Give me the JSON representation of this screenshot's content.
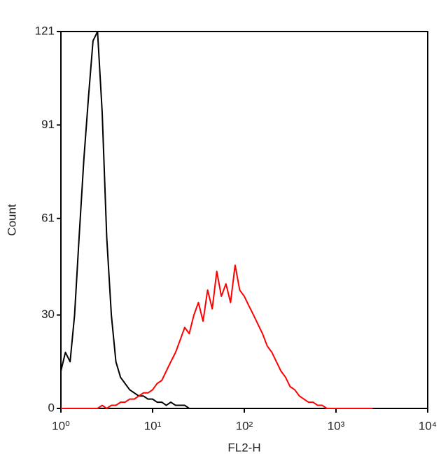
{
  "chart_data": {
    "type": "line",
    "xlabel": "FL2-H",
    "ylabel": "Count",
    "x": [
      1,
      1.12,
      1.26,
      1.41,
      1.58,
      1.78,
      2,
      2.24,
      2.51,
      2.82,
      3.16,
      3.55,
      3.98,
      4.47,
      5.01,
      5.62,
      6.31,
      7.08,
      7.94,
      8.91,
      10,
      11.2,
      12.6,
      14.1,
      15.8,
      17.8,
      20,
      22.4,
      25.1,
      28.2,
      31.6,
      35.5,
      39.8,
      44.7,
      50.1,
      56.2,
      63.1,
      70.8,
      79.4,
      89.1,
      100,
      112,
      126,
      141,
      158,
      178,
      200,
      224,
      251,
      282,
      316,
      355,
      398,
      447,
      501,
      562,
      631,
      708,
      794,
      891,
      1000,
      1120,
      1260,
      1410,
      1580,
      1780,
      2000,
      2240,
      2510
    ],
    "series": [
      {
        "color": "#000000",
        "values": [
          12,
          18,
          15,
          30,
          55,
          80,
          100,
          118,
          121,
          95,
          55,
          30,
          15,
          10,
          8,
          6,
          5,
          4,
          4,
          3,
          3,
          2,
          2,
          1,
          2,
          1,
          1,
          1,
          0,
          0,
          0,
          0,
          0,
          0,
          0,
          0,
          0,
          0,
          0,
          0,
          0,
          0,
          0,
          0,
          0,
          0,
          0,
          0,
          0,
          0,
          0,
          0,
          0,
          0,
          0,
          0,
          0,
          0,
          0,
          0,
          0,
          0,
          0,
          0,
          0,
          0,
          0,
          0,
          0
        ]
      },
      {
        "color": "#ff0000",
        "values": [
          0,
          0,
          0,
          0,
          0,
          0,
          0,
          0,
          0,
          1,
          0,
          1,
          1,
          2,
          2,
          3,
          3,
          4,
          5,
          5,
          6,
          8,
          9,
          12,
          15,
          18,
          22,
          26,
          24,
          30,
          34,
          28,
          38,
          32,
          44,
          36,
          40,
          34,
          46,
          38,
          36,
          33,
          30,
          27,
          24,
          20,
          18,
          15,
          12,
          10,
          7,
          6,
          4,
          3,
          2,
          2,
          1,
          1,
          0,
          0,
          0,
          0,
          0,
          0,
          0,
          0,
          0,
          0,
          0
        ]
      }
    ],
    "xlim": [
      1,
      10000
    ],
    "xscale": "log",
    "xticks": [
      {
        "value": 1,
        "label": "10⁰"
      },
      {
        "value": 10,
        "label": "10¹"
      },
      {
        "value": 100,
        "label": "10²"
      },
      {
        "value": 1000,
        "label": "10³"
      },
      {
        "value": 10000,
        "label": "10⁴"
      }
    ],
    "ylim": [
      0,
      121
    ],
    "yticks": [
      0,
      30,
      61,
      91,
      121
    ]
  }
}
